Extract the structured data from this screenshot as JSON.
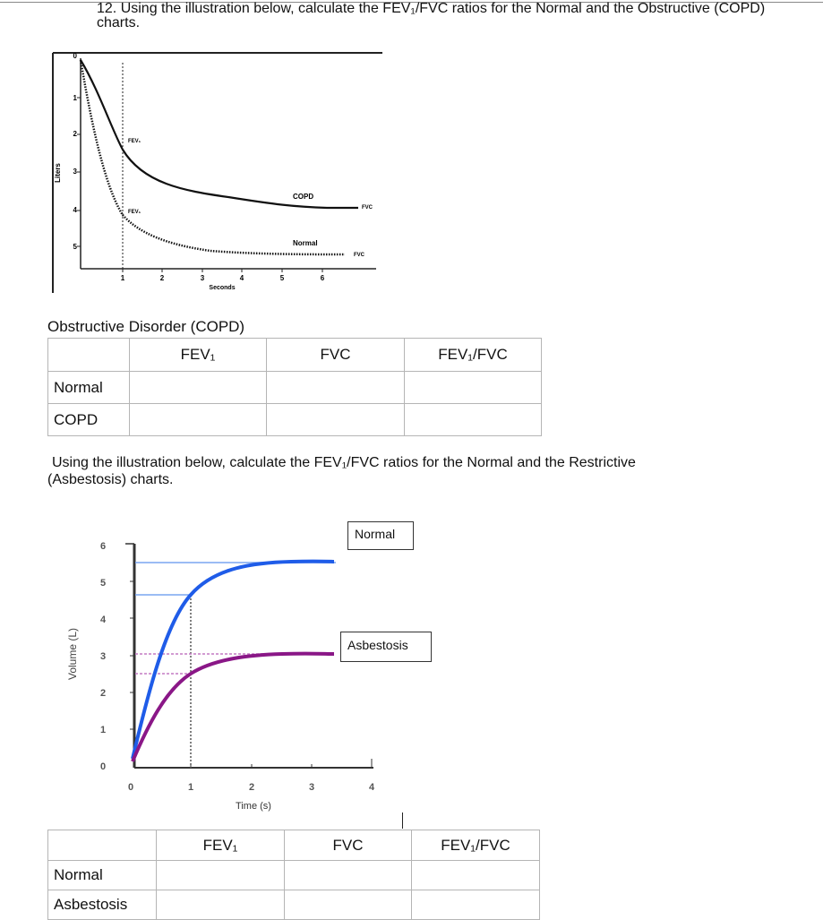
{
  "question12": {
    "line1": "12. Using the illustration below, calculate the FEV₁/FVC ratios for the Normal and the Obstructive (COPD)",
    "line2": "charts."
  },
  "copd_chart": {
    "ylabel": "Liters",
    "xlabel": "Seconds",
    "y_ticks": [
      "0",
      "1",
      "2",
      "3",
      "4",
      "5"
    ],
    "x_ticks": [
      "1",
      "2",
      "3",
      "4",
      "5",
      "6"
    ],
    "labels": {
      "fev1_top": "FEV₁",
      "fev1_bottom": "FEV₁",
      "copd": "COPD",
      "normal": "Normal",
      "fvc_top": "FVC",
      "fvc_bottom": "FVC"
    }
  },
  "table1": {
    "title": "Obstructive Disorder (COPD)",
    "headers": [
      "FEV₁",
      "FVC",
      "FEV₁/FVC"
    ],
    "rows": [
      "Normal",
      "COPD"
    ]
  },
  "question2": {
    "line1": "Using the illustration below, calculate the FEV₁/FVC ratios for the Normal and the Restrictive",
    "line2": "(Asbestosis) charts."
  },
  "asb_chart": {
    "ylabel": "Volume (L)",
    "xlabel": "Time (s)",
    "y_ticks": [
      "6",
      "5",
      "4",
      "3",
      "2",
      "1",
      "0"
    ],
    "x_ticks": [
      "0",
      "1",
      "2",
      "3",
      "4"
    ],
    "legend_normal": "Normal",
    "legend_asbestosis": "Asbestosis",
    "colors": {
      "normal": "#1f5ce8",
      "asbestosis": "#8a1787"
    }
  },
  "table2": {
    "headers": [
      "FEV₁",
      "FVC",
      "FEV₁/FVC"
    ],
    "rows": [
      "Normal",
      "Asbestosis"
    ]
  }
}
